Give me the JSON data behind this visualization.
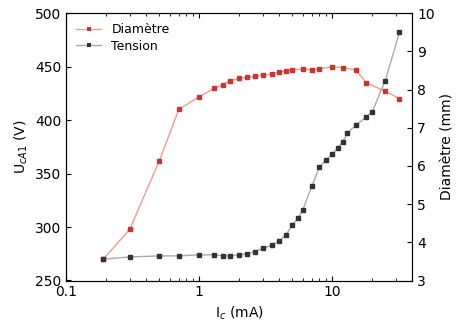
{
  "xlabel": "I$_c$ (mA)",
  "ylabel_left": "U$_{cA1}$ (V)",
  "ylabel_right": "Diamètre (mm)",
  "ylim_left": [
    250,
    500
  ],
  "ylim_right": [
    3,
    10
  ],
  "xlim": [
    0.1,
    40
  ],
  "legend_labels": [
    "Diamètre",
    "Tension"
  ],
  "red_x": [
    0.19,
    0.3,
    0.5,
    0.7,
    1.0,
    1.3,
    1.5,
    1.7,
    2.0,
    2.3,
    2.6,
    3.0,
    3.5,
    4.0,
    4.5,
    5.0,
    6.0,
    7.0,
    8.0,
    10.0,
    12.0,
    15.0,
    18.0,
    25.0,
    32.0
  ],
  "red_y": [
    270,
    298,
    362,
    410,
    422,
    430,
    433,
    437,
    439,
    440,
    441,
    442,
    443,
    445,
    446,
    447,
    448,
    447,
    448,
    450,
    449,
    447,
    435,
    427,
    420
  ],
  "black_x": [
    0.19,
    0.3,
    0.5,
    0.7,
    1.0,
    1.3,
    1.5,
    1.7,
    2.0,
    2.3,
    2.6,
    3.0,
    3.5,
    4.0,
    4.5,
    5.0,
    5.5,
    6.0,
    7.0,
    8.0,
    9.0,
    10.0,
    11.0,
    12.0,
    13.0,
    15.0,
    18.0,
    20.0,
    25.0,
    32.0
  ],
  "black_y": [
    270,
    272,
    273,
    273,
    274,
    274,
    273,
    273,
    274,
    275,
    277,
    280,
    283,
    287,
    293,
    302,
    308,
    316,
    338,
    356,
    363,
    368,
    374,
    380,
    388,
    395,
    403,
    408,
    437,
    482
  ],
  "red_color": "#cc3333",
  "black_color": "#333333",
  "line_color_red": "#e8a090",
  "line_color_black": "#aaaaaa",
  "yticks_left": [
    250,
    300,
    350,
    400,
    450,
    500
  ],
  "yticks_right": [
    3,
    4,
    5,
    6,
    7,
    8,
    9,
    10
  ],
  "xticks": [
    0.1,
    1,
    10
  ],
  "xtick_labels": [
    "0.1",
    "1",
    "10"
  ]
}
